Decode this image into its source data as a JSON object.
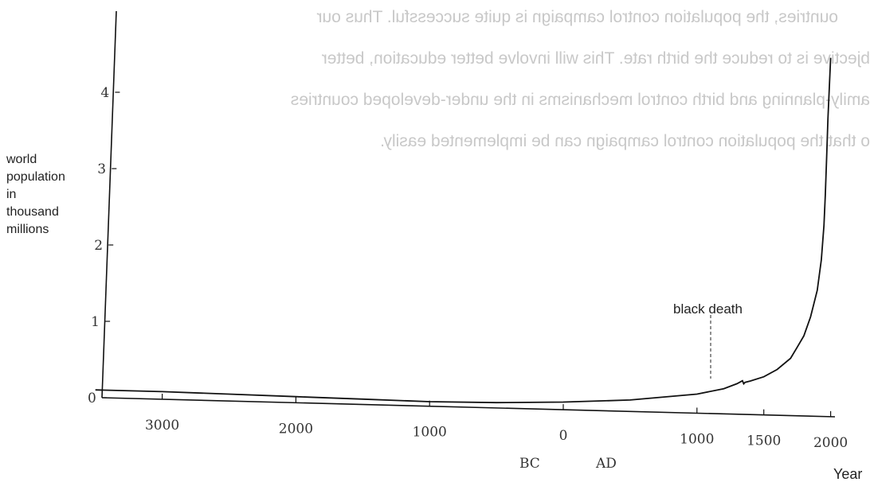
{
  "chart_data": {
    "type": "line",
    "title": "",
    "ylabel_lines": [
      "world",
      "population",
      "in",
      "thousand",
      "millions"
    ],
    "xlabel": "Year",
    "era_labels": [
      "BC",
      "AD"
    ],
    "x_ticks": [
      "3000",
      "2000",
      "1000",
      "0",
      "1000",
      "1500",
      "2000"
    ],
    "y_ticks": [
      "0",
      "1",
      "2",
      "3",
      "4"
    ],
    "ylim": [
      0,
      4.5
    ],
    "annotation": "black death",
    "series": [
      {
        "x": [
          -3500,
          -3000,
          -2500,
          -2000,
          -1500,
          -1000,
          -500,
          0,
          500,
          1000,
          1200,
          1300,
          1340,
          1350,
          1360,
          1400,
          1500,
          1600,
          1700,
          1750,
          1800,
          1850,
          1900,
          1930,
          1950,
          1960,
          1970,
          1980,
          1990,
          2000
        ],
        "y": [
          0.1,
          0.1,
          0.09,
          0.08,
          0.07,
          0.06,
          0.07,
          0.1,
          0.15,
          0.25,
          0.33,
          0.4,
          0.44,
          0.4,
          0.42,
          0.44,
          0.5,
          0.6,
          0.75,
          0.9,
          1.05,
          1.3,
          1.65,
          2.05,
          2.5,
          2.9,
          3.4,
          3.9,
          4.3,
          4.7
        ]
      }
    ]
  },
  "background_text": [
    "ountries, the population control campaign is quite successful. Thus our",
    "bjective is to reduce the birth rate. This will involve better education, better",
    "amily-planning and birth control mechanisms in the under-developed countries",
    "o that the population control campaign can be implemented easily."
  ]
}
